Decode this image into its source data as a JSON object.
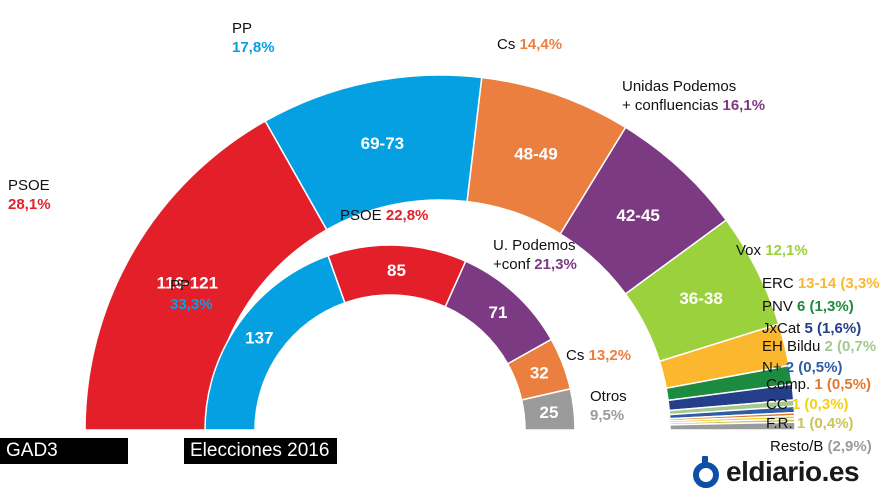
{
  "tags": {
    "left": "GAD3",
    "inner": "Elecciones 2016"
  },
  "logo": {
    "text": "eldiario.es"
  },
  "chart_data": [
    {
      "type": "pie",
      "label": "GAD3",
      "series": [
        {
          "name": "PSOE",
          "pct": "28,1%",
          "seats": "116-121",
          "value": 118.5,
          "color": "#e3202a"
        },
        {
          "name": "PP",
          "pct": "17,8%",
          "seats": "69-73",
          "value": 71,
          "color": "#05a0e2"
        },
        {
          "name": "Cs",
          "pct": "14,4%",
          "seats": "48-49",
          "value": 48.5,
          "color": "#eb7f3f"
        },
        {
          "name": "Unidas Podemos\n+ confluencias",
          "pct": "16,1%",
          "seats": "42-45",
          "value": 43.5,
          "color": "#7c3a83"
        },
        {
          "name": "Vox",
          "pct": "12,1%",
          "seats": "36-38",
          "value": 37,
          "color": "#9bd13d"
        },
        {
          "name": "ERC",
          "pct": "13-14 (3,3%",
          "value": 13.5,
          "color": "#fbb72d"
        },
        {
          "name": "PNV",
          "pct": "6 (1,3%)",
          "value": 6,
          "color": "#1d8b3f"
        },
        {
          "name": "JxCat",
          "pct": "5 (1,6%)",
          "value": 5,
          "color": "#253e8a"
        },
        {
          "name": "EH Bildu",
          "pct": "2 (0,7%",
          "value": 2,
          "color": "#a3c98f"
        },
        {
          "name": "N+",
          "pct": "2 (0,5%)",
          "value": 2,
          "color": "#2e5ca6"
        },
        {
          "name": "Comp.",
          "pct": "1 (0,5%)",
          "value": 1,
          "color": "#e07a33"
        },
        {
          "name": "CC",
          "pct": "1 (0,3%)",
          "value": 1,
          "color": "#f2d11b"
        },
        {
          "name": "F.R.",
          "pct": "1 (0,4%)",
          "value": 1,
          "color": "#c9c45a"
        },
        {
          "name": "Resto/B",
          "pct": "(2,9%)",
          "value": 2.5,
          "color": "#9b9b9b"
        }
      ]
    },
    {
      "type": "pie",
      "label": "Elecciones 2016",
      "series": [
        {
          "name": "PP",
          "pct": "33,3%",
          "seats": "137",
          "value": 137,
          "color": "#05a0e2"
        },
        {
          "name": "PSOE",
          "pct": "22,8%",
          "seats": "85",
          "value": 85,
          "color": "#e3202a"
        },
        {
          "name": "U. Podemos\n+conf",
          "pct": "21,3%",
          "seats": "71",
          "value": 71,
          "color": "#7c3a83"
        },
        {
          "name": "Cs",
          "pct": "13,2%",
          "seats": "32",
          "value": 32,
          "color": "#eb7f3f"
        },
        {
          "name": "Otros",
          "pct": "9,5%",
          "seats": "25",
          "value": 25,
          "color": "#9b9b9b"
        }
      ]
    }
  ]
}
